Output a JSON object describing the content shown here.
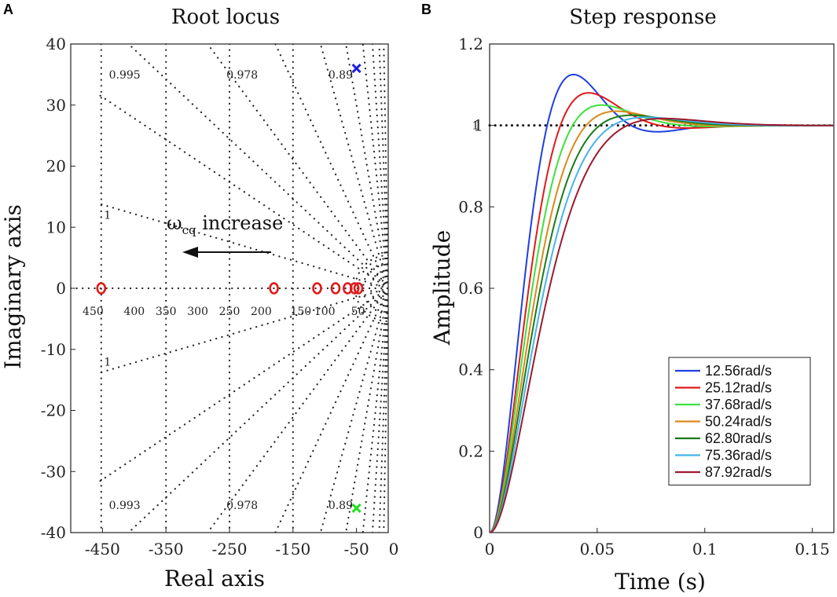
{
  "chart_data": [
    {
      "panel": "A",
      "type": "scatter",
      "title": "Root locus",
      "xlabel": "Real axis",
      "ylabel": "Imaginary axis",
      "xlim": [
        -500,
        0
      ],
      "ylim": [
        -40,
        40
      ],
      "xticks": [
        "-450",
        "-350",
        "-250",
        "-150",
        "-50",
        "0"
      ],
      "yticks": [
        "40",
        "30",
        "20",
        "10",
        "0",
        "-10",
        "-20",
        "-30",
        "-40"
      ],
      "grid_freq_labels": [
        "450",
        "400",
        "350",
        "300",
        "250",
        "200",
        "150",
        "100",
        "50"
      ],
      "damping_labels": [
        "0.995",
        "0.978",
        "0.89",
        "1",
        "1",
        "0.993",
        "0.978",
        "0.89"
      ],
      "annotation": {
        "symbol": "ω",
        "subscript": "cq",
        "text": " increase"
      },
      "zeros": [
        {
          "re": -452,
          "im": 0
        },
        {
          "re": -180,
          "im": 0
        },
        {
          "re": -112,
          "im": 0
        },
        {
          "re": -83,
          "im": 0
        },
        {
          "re": -64,
          "im": 0
        },
        {
          "re": -53,
          "im": 0
        },
        {
          "re": -47,
          "im": 0
        }
      ],
      "poles": [
        {
          "re": -50,
          "im": 36,
          "color": "#2020e0"
        },
        {
          "re": -50,
          "im": -36,
          "color": "#20e020"
        }
      ]
    },
    {
      "panel": "B",
      "type": "line",
      "title": "Step response",
      "xlabel": "Time (s)",
      "ylabel": "Amplitude",
      "xlim": [
        0,
        0.16
      ],
      "ylim": [
        0,
        1.2
      ],
      "xticks": [
        "0",
        "0.05",
        "0.1",
        "0.15"
      ],
      "yticks": [
        "1.2",
        "1",
        "0.8",
        "0.6",
        "0.4",
        "0.2",
        "0"
      ],
      "reference_label": "1",
      "legend_position": "bottom-right",
      "series": [
        {
          "name": "12.56rad/s",
          "color": "#1f3fe0",
          "peak": 1.125,
          "peak_time": 0.039
        },
        {
          "name": "25.12rad/s",
          "color": "#e01a1a",
          "peak": 1.08,
          "peak_time": 0.046
        },
        {
          "name": "37.68rad/s",
          "color": "#3ee03e",
          "peak": 1.05,
          "peak_time": 0.052
        },
        {
          "name": "50.24rad/s",
          "color": "#d98a1a",
          "peak": 1.035,
          "peak_time": 0.059
        },
        {
          "name": "62.80rad/s",
          "color": "#1a7a1a",
          "peak": 1.025,
          "peak_time": 0.066
        },
        {
          "name": "75.36rad/s",
          "color": "#47b3ea",
          "peak": 1.02,
          "peak_time": 0.073
        },
        {
          "name": "87.92rad/s",
          "color": "#9b1a2e",
          "peak": 1.017,
          "peak_time": 0.081
        }
      ]
    }
  ]
}
